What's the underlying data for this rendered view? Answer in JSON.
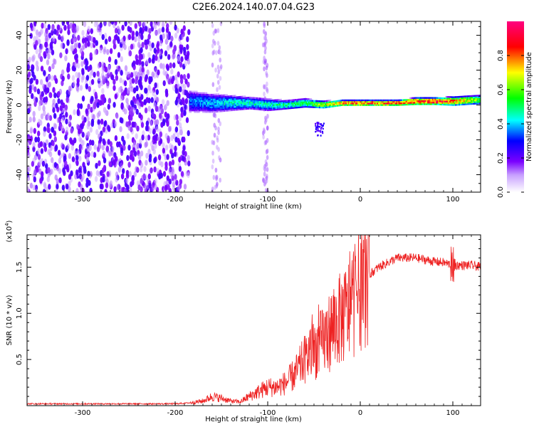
{
  "figure": {
    "title": "C2E6.2024.140.07.04.G23"
  },
  "chart_data": [
    {
      "type": "heatmap",
      "xlabel": "Height of straight line (km)",
      "ylabel": "Frequency (Hz)",
      "xlim": [
        -360,
        130
      ],
      "ylim": [
        -50,
        48
      ],
      "xticks": [
        -300,
        -200,
        -100,
        0,
        100
      ],
      "yticks": [
        -40,
        -20,
        0,
        20,
        40
      ],
      "colorbar": {
        "label": "Normalized spectral amplitude",
        "range": [
          0,
          1
        ],
        "ticks": [
          "0.0",
          "0.2",
          "0.4",
          "0.6",
          "0.8"
        ],
        "colormap": [
          "#ffffff",
          "#7a00ff",
          "#0000ff",
          "#00ffff",
          "#00ff00",
          "#ffff00",
          "#ff0000",
          "#ff0080"
        ]
      },
      "band": {
        "x": [
          -185,
          -160,
          -140,
          -120,
          -100,
          -80,
          -60,
          -40,
          -20,
          0,
          20,
          40,
          60,
          80,
          100,
          130
        ],
        "center_freq": [
          2,
          1,
          1,
          1,
          0,
          0,
          1,
          0,
          1,
          1,
          1,
          1,
          2,
          2,
          2,
          3
        ],
        "half_width": [
          7,
          6,
          5,
          4,
          4,
          3,
          3,
          2.5,
          2,
          2,
          2,
          2,
          2.5,
          2.5,
          3,
          3
        ],
        "peak_amplitude": [
          0.35,
          0.4,
          0.45,
          0.45,
          0.45,
          0.5,
          0.55,
          0.65,
          0.8,
          0.85,
          0.85,
          0.85,
          0.85,
          0.9,
          0.8,
          0.6
        ]
      },
      "noise_region_x": [
        -360,
        -185
      ]
    },
    {
      "type": "line",
      "xlabel": "Height of straight line (km)",
      "ylabel": "SNR (10 * v/v)",
      "scale_label": "(x10^4)",
      "xlim": [
        -360,
        130
      ],
      "ylim": [
        0,
        1.85
      ],
      "xticks": [
        -300,
        -200,
        -100,
        0,
        100
      ],
      "yticks": [
        "0.5",
        "1.0",
        "1.5"
      ],
      "series": [
        {
          "color": "#ee2222",
          "x": [
            -360,
            -300,
            -250,
            -200,
            -185,
            -170,
            -160,
            -150,
            -140,
            -130,
            -120,
            -110,
            -100,
            -90,
            -80,
            -70,
            -60,
            -50,
            -40,
            -30,
            -20,
            -15,
            -10,
            -5,
            0,
            10,
            20,
            30,
            40,
            50,
            60,
            70,
            80,
            90,
            100,
            110,
            120,
            130
          ],
          "y": [
            0.02,
            0.02,
            0.02,
            0.02,
            0.03,
            0.05,
            0.1,
            0.08,
            0.05,
            0.04,
            0.1,
            0.15,
            0.2,
            0.2,
            0.25,
            0.35,
            0.5,
            0.6,
            0.7,
            0.85,
            0.95,
            1.0,
            1.1,
            1.2,
            1.3,
            1.42,
            1.5,
            1.55,
            1.6,
            1.6,
            1.6,
            1.58,
            1.56,
            1.55,
            1.52,
            1.52,
            1.52,
            1.5
          ]
        }
      ]
    }
  ]
}
